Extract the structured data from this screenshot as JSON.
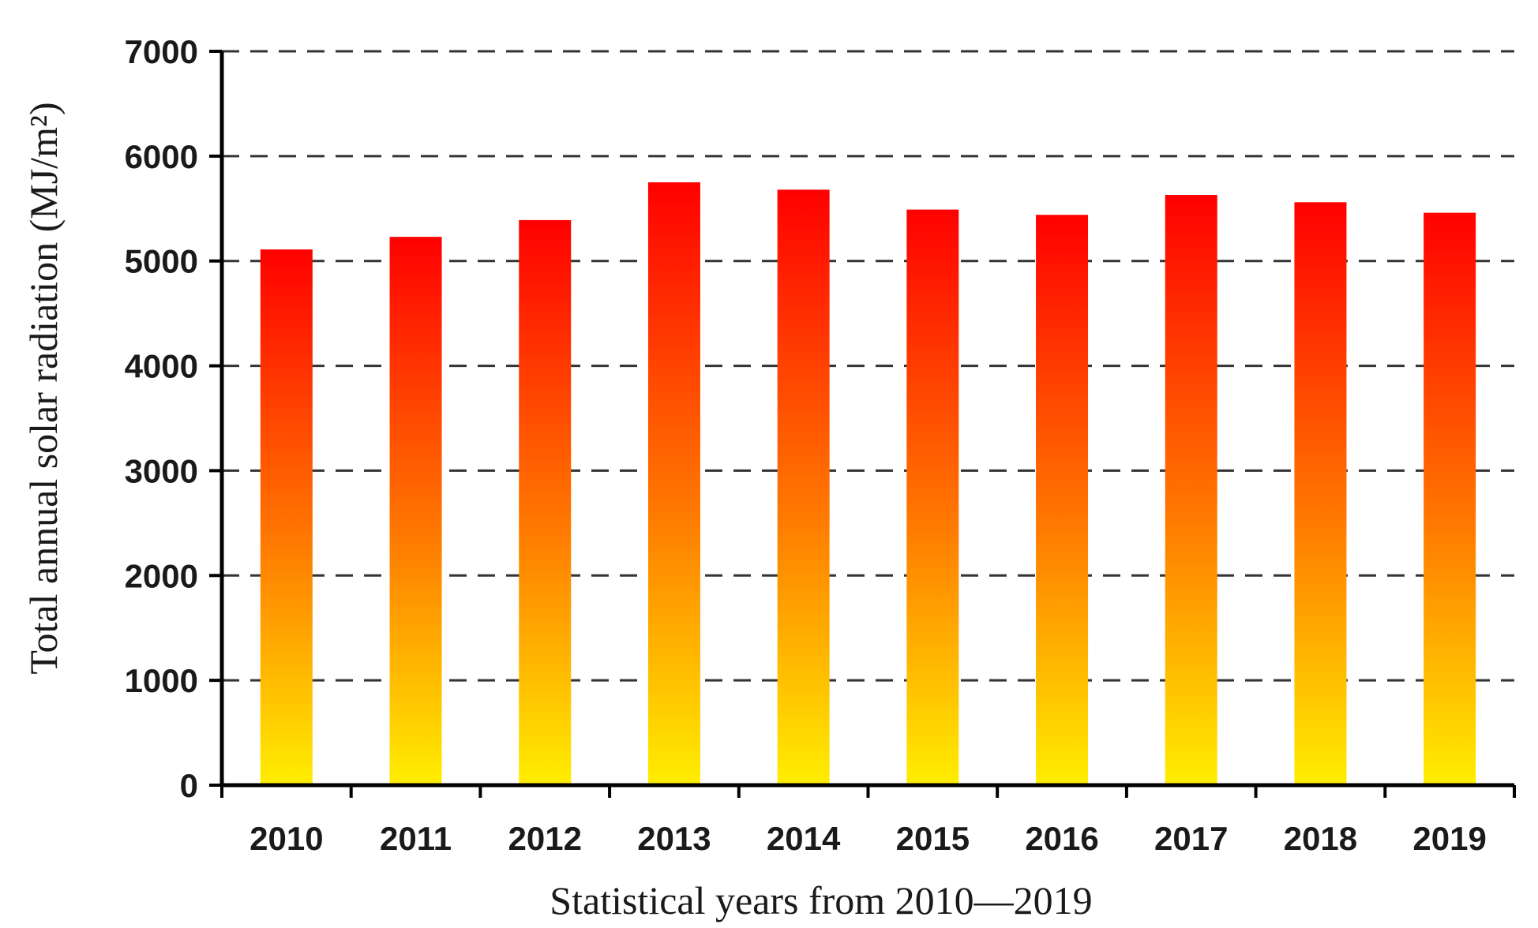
{
  "chart_data": {
    "type": "bar",
    "categories": [
      "2010",
      "2011",
      "2012",
      "2013",
      "2014",
      "2015",
      "2016",
      "2017",
      "2018",
      "2019"
    ],
    "values": [
      5110,
      5230,
      5390,
      5750,
      5680,
      5490,
      5440,
      5630,
      5560,
      5460
    ],
    "xlabel": "Statistical years from 2010—2019",
    "ylabel": "Total annual solar radiation (MJ/m²)",
    "ylim": [
      0,
      7000
    ],
    "yticks": [
      "0",
      "1000",
      "2000",
      "3000",
      "4000",
      "5000",
      "6000",
      "7000"
    ],
    "grid": true,
    "legend": "none",
    "colors": {
      "bar_top": "#ff0000",
      "bar_mid": "#ff7a00",
      "bar_bottom": "#ffee00",
      "grid": "#333333",
      "axis": "#000000"
    }
  }
}
